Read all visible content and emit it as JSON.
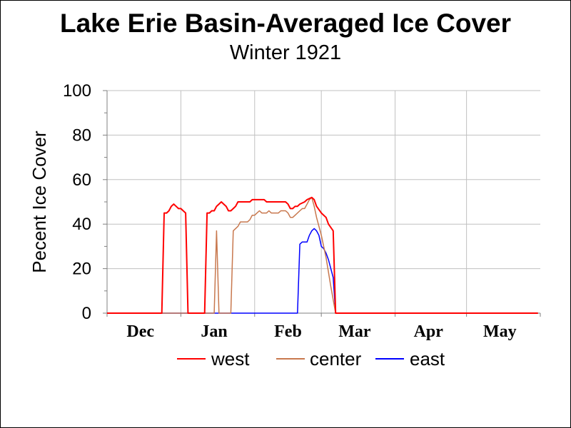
{
  "chart_data": {
    "type": "line",
    "title": "Lake Erie Basin-Averaged Ice Cover",
    "subtitle": "Winter 1921",
    "ylabel": "Pecent Ice Cover",
    "xlabel": "",
    "ylim": [
      0,
      100
    ],
    "yticks": [
      "0",
      "20",
      "40",
      "60",
      "80",
      "100"
    ],
    "xlim": [
      "1920-12-01",
      "1921-05-31"
    ],
    "xtick_labels": [
      "Dec",
      "Jan",
      "Feb",
      "Mar",
      "Apr",
      "May"
    ],
    "xtick_dates": [
      "1920-12-15",
      "1921-01-15",
      "1921-02-15",
      "1921-03-15",
      "1921-04-15",
      "1921-05-15"
    ],
    "month_boundaries": [
      "1920-12-01",
      "1921-01-01",
      "1921-02-01",
      "1921-03-01",
      "1921-04-01",
      "1921-05-01",
      "1921-06-01"
    ],
    "grid": true,
    "legend_position": "bottom",
    "series": [
      {
        "name": "west",
        "color": "#ff0000",
        "points": [
          [
            "1920-12-01",
            0
          ],
          [
            "1920-12-24",
            0
          ],
          [
            "1920-12-25",
            45
          ],
          [
            "1920-12-26",
            45
          ],
          [
            "1920-12-27",
            46
          ],
          [
            "1920-12-28",
            48
          ],
          [
            "1920-12-29",
            49
          ],
          [
            "1920-12-30",
            48
          ],
          [
            "1920-12-31",
            47
          ],
          [
            "1921-01-01",
            47
          ],
          [
            "1921-01-02",
            46
          ],
          [
            "1921-01-03",
            45
          ],
          [
            "1921-01-04",
            0
          ],
          [
            "1921-01-11",
            0
          ],
          [
            "1921-01-12",
            45
          ],
          [
            "1921-01-13",
            45
          ],
          [
            "1921-01-14",
            46
          ],
          [
            "1921-01-15",
            46
          ],
          [
            "1921-01-16",
            48
          ],
          [
            "1921-01-17",
            49
          ],
          [
            "1921-01-18",
            50
          ],
          [
            "1921-01-19",
            49
          ],
          [
            "1921-01-20",
            48
          ],
          [
            "1921-01-21",
            46
          ],
          [
            "1921-01-22",
            46
          ],
          [
            "1921-01-23",
            47
          ],
          [
            "1921-01-24",
            48
          ],
          [
            "1921-01-25",
            50
          ],
          [
            "1921-01-30",
            50
          ],
          [
            "1921-01-31",
            51
          ],
          [
            "1921-02-05",
            51
          ],
          [
            "1921-02-06",
            50
          ],
          [
            "1921-02-14",
            50
          ],
          [
            "1921-02-15",
            49
          ],
          [
            "1921-02-16",
            47
          ],
          [
            "1921-02-17",
            47
          ],
          [
            "1921-02-18",
            48
          ],
          [
            "1921-02-19",
            48
          ],
          [
            "1921-02-20",
            49
          ],
          [
            "1921-02-22",
            50
          ],
          [
            "1921-02-23",
            51
          ],
          [
            "1921-02-25",
            52
          ],
          [
            "1921-02-26",
            51
          ],
          [
            "1921-02-27",
            48
          ],
          [
            "1921-03-01",
            45
          ],
          [
            "1921-03-03",
            43
          ],
          [
            "1921-03-04",
            40
          ],
          [
            "1921-03-06",
            37
          ],
          [
            "1921-03-07",
            0
          ],
          [
            "1921-05-31",
            0
          ]
        ]
      },
      {
        "name": "center",
        "color": "#c8784e",
        "points": [
          [
            "1920-12-01",
            0
          ],
          [
            "1921-01-15",
            0
          ],
          [
            "1921-01-16",
            37
          ],
          [
            "1921-01-17",
            0
          ],
          [
            "1921-01-22",
            0
          ],
          [
            "1921-01-23",
            37
          ],
          [
            "1921-01-25",
            39
          ],
          [
            "1921-01-26",
            41
          ],
          [
            "1921-01-29",
            41
          ],
          [
            "1921-01-30",
            42
          ],
          [
            "1921-01-31",
            44
          ],
          [
            "1921-02-01",
            44
          ],
          [
            "1921-02-02",
            45
          ],
          [
            "1921-02-03",
            46
          ],
          [
            "1921-02-04",
            45
          ],
          [
            "1921-02-06",
            45
          ],
          [
            "1921-02-07",
            46
          ],
          [
            "1921-02-08",
            45
          ],
          [
            "1921-02-11",
            45
          ],
          [
            "1921-02-12",
            46
          ],
          [
            "1921-02-14",
            46
          ],
          [
            "1921-02-15",
            45
          ],
          [
            "1921-02-16",
            43
          ],
          [
            "1921-02-17",
            43
          ],
          [
            "1921-02-18",
            44
          ],
          [
            "1921-02-20",
            46
          ],
          [
            "1921-02-21",
            47
          ],
          [
            "1921-02-22",
            47
          ],
          [
            "1921-02-23",
            49
          ],
          [
            "1921-02-24",
            51
          ],
          [
            "1921-02-25",
            52
          ],
          [
            "1921-02-26",
            48
          ],
          [
            "1921-02-27",
            43
          ],
          [
            "1921-03-01",
            35
          ],
          [
            "1921-03-03",
            25
          ],
          [
            "1921-03-05",
            12
          ],
          [
            "1921-03-07",
            0
          ],
          [
            "1921-05-31",
            0
          ]
        ]
      },
      {
        "name": "east",
        "color": "#0000ff",
        "points": [
          [
            "1920-12-01",
            0
          ],
          [
            "1921-02-19",
            0
          ],
          [
            "1921-02-20",
            31
          ],
          [
            "1921-02-21",
            32
          ],
          [
            "1921-02-23",
            32
          ],
          [
            "1921-02-24",
            35
          ],
          [
            "1921-02-25",
            37
          ],
          [
            "1921-02-26",
            38
          ],
          [
            "1921-02-27",
            37
          ],
          [
            "1921-02-28",
            35
          ],
          [
            "1921-03-01",
            30
          ],
          [
            "1921-03-02",
            29
          ],
          [
            "1921-03-03",
            27
          ],
          [
            "1921-03-04",
            24
          ],
          [
            "1921-03-05",
            20
          ],
          [
            "1921-03-06",
            16
          ],
          [
            "1921-03-07",
            0
          ],
          [
            "1921-05-31",
            0
          ]
        ]
      }
    ]
  }
}
